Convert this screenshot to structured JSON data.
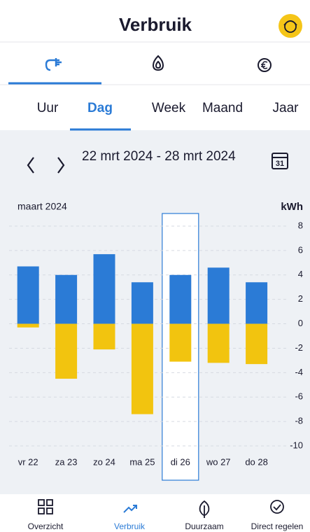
{
  "header": {
    "title": "Verbruik"
  },
  "period_tabs": {
    "items": [
      "Uur",
      "Dag",
      "Week",
      "Maand",
      "Jaar"
    ],
    "active": 1
  },
  "date_range": {
    "text": "22 mrt 2024 - 28 mrt 2024"
  },
  "calendar_icon": {
    "day": "31"
  },
  "bottom_nav": {
    "items": [
      "Overzicht",
      "Verbruik",
      "Duurzaam",
      "Direct regelen"
    ],
    "active": 1
  },
  "chart_data": {
    "type": "bar",
    "subtitle": "maart 2024",
    "y_label": "kWh",
    "categories": [
      "vr 22",
      "za 23",
      "zo 24",
      "ma 25",
      "di 26",
      "wo 27",
      "do 28"
    ],
    "series": [
      {
        "color": "#2b7bd6",
        "values": [
          4.7,
          4.0,
          5.7,
          3.4,
          4.0,
          4.6,
          3.4
        ]
      },
      {
        "color": "#f2c40f",
        "values": [
          -0.3,
          -4.5,
          -2.1,
          -7.4,
          -3.1,
          -3.2,
          -3.3
        ]
      }
    ],
    "ylim": [
      -10,
      8
    ],
    "yticks": [
      -10,
      -8,
      -6,
      -4,
      -2,
      0,
      2,
      4,
      6,
      8
    ],
    "grid": true,
    "highlight_index": 4
  }
}
